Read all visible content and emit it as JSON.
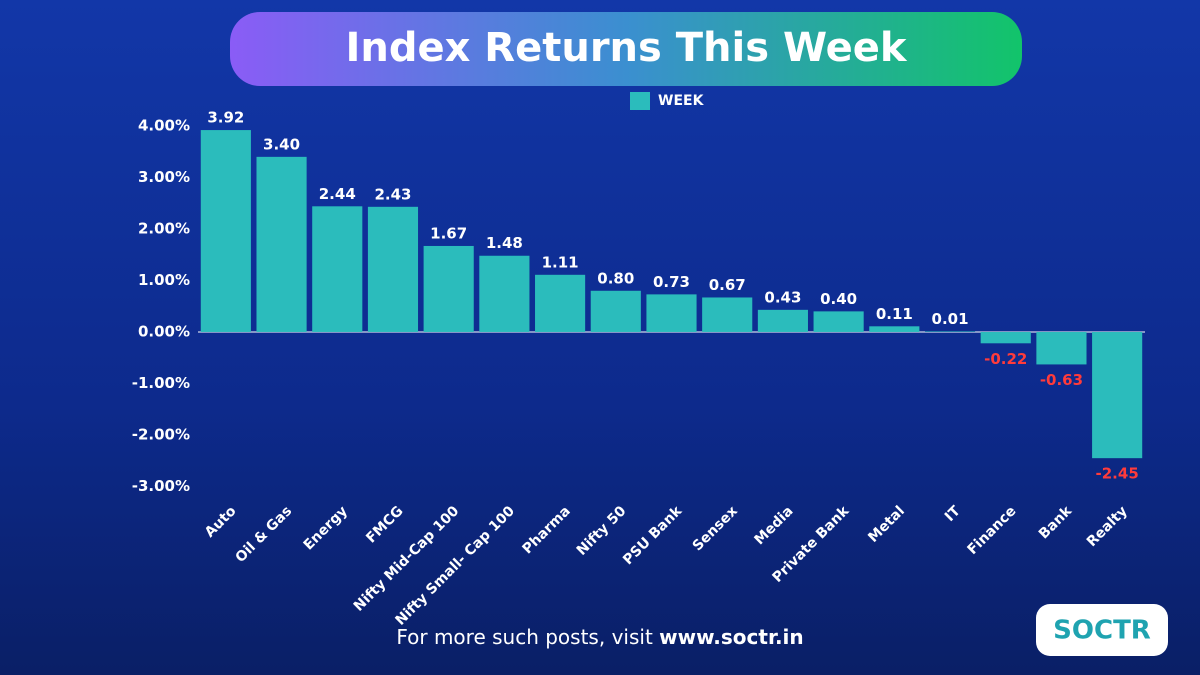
{
  "chart_data": {
    "type": "bar",
    "title": "Index Returns This Week",
    "categories": [
      "Auto",
      "Oil & Gas",
      "Energy",
      "FMCG",
      "Nifty Mid-Cap 100",
      "Nifty Small- Cap 100",
      "Pharma",
      "Nifty 50",
      "PSU Bank",
      "Sensex",
      "Media",
      "Private Bank",
      "Metal",
      "IT",
      "Finance",
      "Bank",
      "Realty"
    ],
    "series": [
      {
        "name": "WEEK",
        "color": "#2bbcbc",
        "values": [
          3.92,
          3.4,
          2.44,
          2.43,
          1.67,
          1.48,
          1.11,
          0.8,
          0.73,
          0.67,
          0.43,
          0.4,
          0.11,
          0.01,
          -0.22,
          -0.63,
          -2.45
        ],
        "value_labels": [
          "3.92",
          "3.40",
          "2.44",
          "2.43",
          "1.67",
          "1.48",
          "1.11",
          "0.80",
          "0.73",
          "0.67",
          "0.43",
          "0.40",
          "0.11",
          "0.01",
          "-0.22",
          "-0.63",
          "-2.45"
        ]
      }
    ],
    "ylim": [
      -3.2,
      4.3
    ],
    "yticks": [
      {
        "value": 4,
        "label": "4.00%"
      },
      {
        "value": 3,
        "label": "3.00%"
      },
      {
        "value": 2,
        "label": "2.00%"
      },
      {
        "value": 1,
        "label": "1.00%"
      },
      {
        "value": 0,
        "label": "0.00%"
      },
      {
        "value": -1,
        "label": "-1.00%"
      },
      {
        "value": -2,
        "label": "-2.00%"
      },
      {
        "value": -3,
        "label": "-3.00%"
      }
    ],
    "legend": "top"
  },
  "footer": {
    "text": "For more such posts, visit",
    "link": "www.soctr.in"
  },
  "logo": "SOCTR"
}
